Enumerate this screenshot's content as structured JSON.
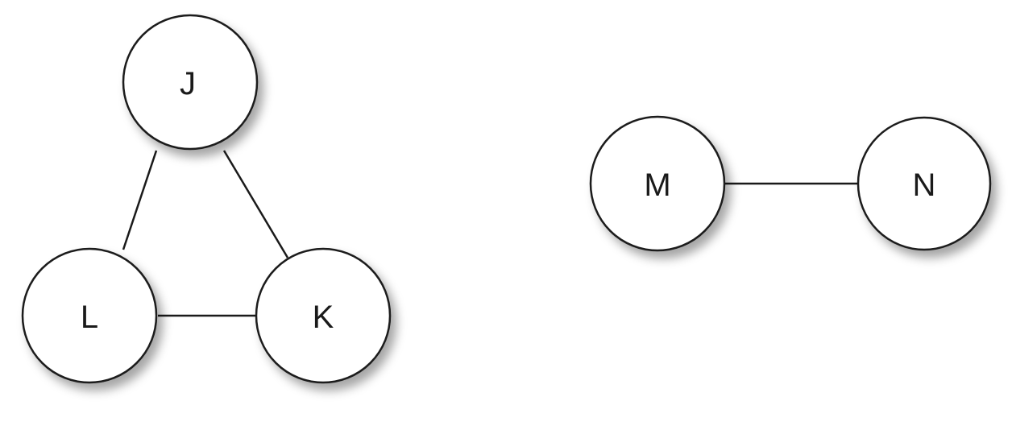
{
  "graph": {
    "nodes": [
      {
        "id": "J",
        "label": "J"
      },
      {
        "id": "L",
        "label": "L"
      },
      {
        "id": "K",
        "label": "K"
      },
      {
        "id": "M",
        "label": "M"
      },
      {
        "id": "N",
        "label": "N"
      }
    ],
    "edges": [
      {
        "from": "J",
        "to": "L"
      },
      {
        "from": "J",
        "to": "K"
      },
      {
        "from": "L",
        "to": "K"
      },
      {
        "from": "M",
        "to": "N"
      }
    ]
  }
}
